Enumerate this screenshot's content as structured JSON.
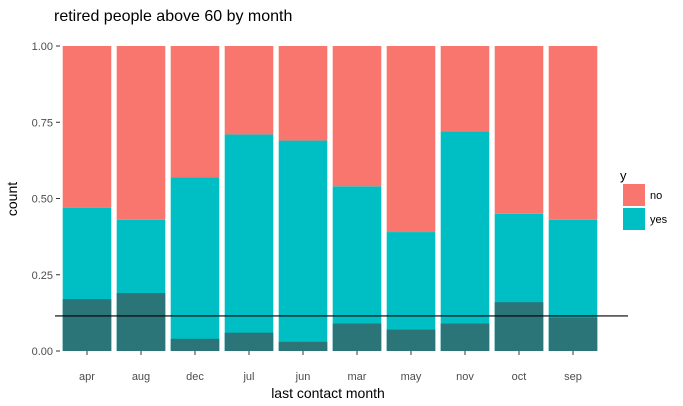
{
  "chart_data": {
    "type": "bar",
    "stacked": "fill",
    "title": "retired people above 60 by month",
    "xlabel": "last contact month",
    "ylabel": "count",
    "ylim": [
      0,
      1
    ],
    "yticks": [
      "0.00",
      "0.25",
      "0.50",
      "0.75",
      "1.00"
    ],
    "categories": [
      "apr",
      "aug",
      "dec",
      "jul",
      "jun",
      "mar",
      "may",
      "nov",
      "oct",
      "sep"
    ],
    "series": [
      {
        "name": "no",
        "color": "#F8766D",
        "values": [
          0.53,
          0.57,
          0.43,
          0.29,
          0.31,
          0.46,
          0.61,
          0.28,
          0.55,
          0.57
        ]
      },
      {
        "name": "yes",
        "color": "#00BFC4",
        "values": [
          0.47,
          0.43,
          0.57,
          0.71,
          0.69,
          0.54,
          0.39,
          0.72,
          0.45,
          0.43
        ]
      }
    ],
    "overlay_bars": {
      "color": "#2F6F72",
      "values": [
        0.17,
        0.19,
        0.04,
        0.06,
        0.03,
        0.09,
        0.07,
        0.09,
        0.16,
        0.11
      ]
    },
    "reference_line": {
      "y": 0.115,
      "color": "#000000"
    },
    "legend": {
      "title": "y",
      "position": "right"
    },
    "grid": false
  }
}
